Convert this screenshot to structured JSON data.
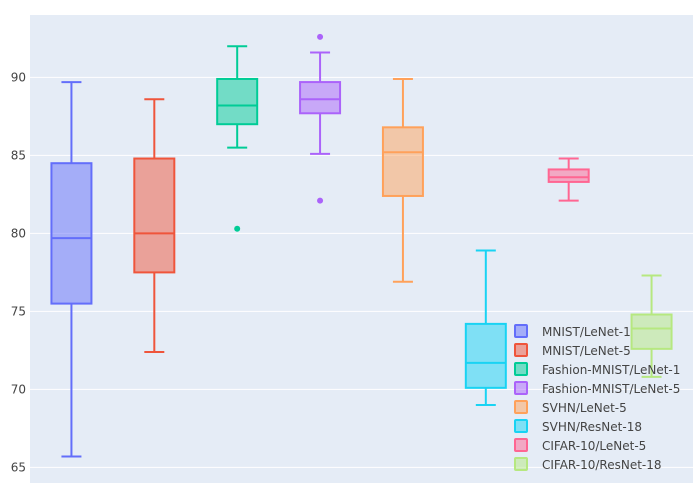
{
  "chart_data": {
    "type": "box",
    "ylim": [
      64,
      94
    ],
    "yticks": [
      65,
      70,
      75,
      80,
      85,
      90
    ],
    "grid": true,
    "legend_position": "bottom-right",
    "series": [
      {
        "name": "MNIST/LeNet-1",
        "color": "#636efa",
        "min": 65.7,
        "q1": 75.5,
        "median": 79.7,
        "q3": 84.5,
        "max": 89.7,
        "outliers": []
      },
      {
        "name": "MNIST/LeNet-5",
        "color": "#EF553B",
        "min": 72.4,
        "q1": 77.5,
        "median": 80.0,
        "q3": 84.8,
        "max": 88.6,
        "outliers": []
      },
      {
        "name": "Fashion-MNIST/LeNet-1",
        "color": "#00cc96",
        "min": 85.5,
        "q1": 87.0,
        "median": 88.2,
        "q3": 89.9,
        "max": 92.0,
        "outliers": [
          80.3
        ]
      },
      {
        "name": "Fashion-MNIST/LeNet-5",
        "color": "#ab63fa",
        "min": 85.1,
        "q1": 87.7,
        "median": 88.6,
        "q3": 89.7,
        "max": 91.6,
        "outliers": [
          92.6,
          82.1
        ]
      },
      {
        "name": "SVHN/LeNet-5",
        "color": "#FFA15A",
        "min": 76.9,
        "q1": 82.4,
        "median": 85.2,
        "q3": 86.8,
        "max": 89.9,
        "outliers": []
      },
      {
        "name": "SVHN/ResNet-18",
        "color": "#19d3f3",
        "min": 69.0,
        "q1": 70.1,
        "median": 71.7,
        "q3": 74.2,
        "max": 78.9,
        "outliers": []
      },
      {
        "name": "CIFAR-10/LeNet-5",
        "color": "#FF6692",
        "min": 82.1,
        "q1": 83.3,
        "median": 83.6,
        "q3": 84.1,
        "max": 84.8,
        "outliers": []
      },
      {
        "name": "CIFAR-10/ResNet-18",
        "color": "#B6E880",
        "min": 70.8,
        "q1": 72.6,
        "median": 73.9,
        "q3": 74.8,
        "max": 77.3,
        "outliers": []
      }
    ]
  }
}
